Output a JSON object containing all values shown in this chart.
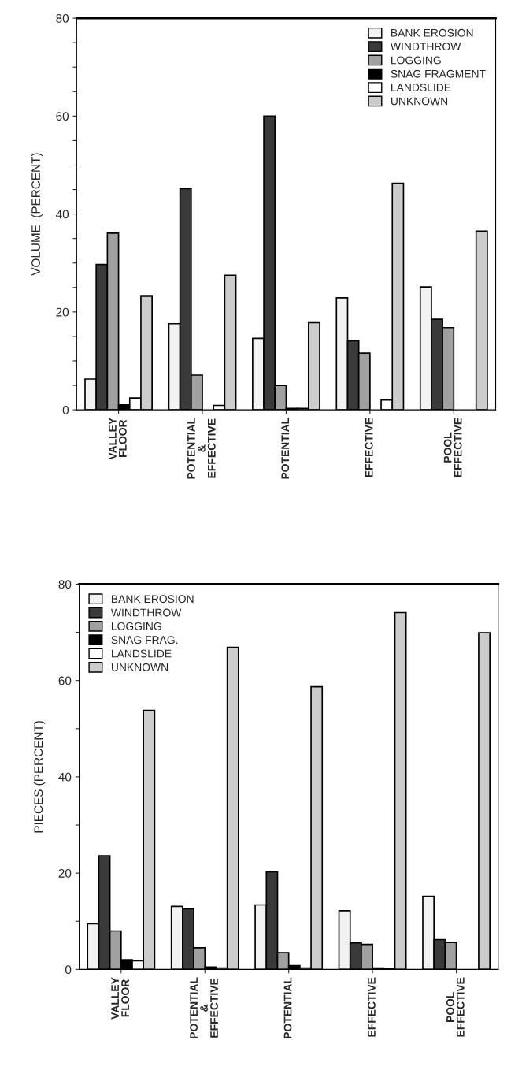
{
  "chart_data": [
    {
      "type": "bar",
      "ylabel": "VOLUME  (PERCENT)",
      "categories": [
        "VALLEY\nFLOOR",
        "POTENTIAL\n&\nEFFECTIVE",
        "POTENTIAL",
        "EFFECTIVE",
        "POOL\nEFFECTIVE"
      ],
      "series": [
        {
          "name": "BANK EROSION",
          "color": "#f2f2f2",
          "values": [
            6.3,
            17.6,
            14.6,
            22.9,
            25.1
          ]
        },
        {
          "name": "WINDTHROW",
          "color": "#3a3a3a",
          "values": [
            29.7,
            45.2,
            60,
            14.1,
            18.5
          ]
        },
        {
          "name": "LOGGING",
          "color": "#a0a0a0",
          "values": [
            36.1,
            7.1,
            5.0,
            11.6,
            16.8
          ]
        },
        {
          "name": "SNAG FRAGMENT",
          "color": "#000000",
          "values": [
            1.0,
            null,
            0.3,
            null,
            null
          ]
        },
        {
          "name": "LANDSLIDE",
          "color": "#ffffff",
          "values": [
            2.4,
            0.9,
            0.3,
            2.0,
            null
          ]
        },
        {
          "name": "UNKNOWN",
          "color": "#cccccc",
          "values": [
            23.2,
            27.5,
            17.8,
            46.3,
            36.5
          ]
        }
      ],
      "ylim": [
        0,
        80
      ],
      "yticks": [
        0,
        {
          "value": 5,
          "label": null
        },
        {
          "value": 10,
          "label": null
        },
        {
          "value": 15,
          "label": null
        },
        20,
        {
          "value": 25,
          "label": null
        },
        {
          "value": 30,
          "label": null
        },
        {
          "value": 35,
          "label": null
        },
        40,
        {
          "value": 45,
          "label": null
        },
        {
          "value": 50,
          "label": null
        },
        {
          "value": 55,
          "label": null
        },
        60,
        {
          "value": 65,
          "label": null
        },
        {
          "value": 70,
          "label": null
        },
        {
          "value": 75,
          "label": null
        },
        80
      ],
      "legend": "top right",
      "grid": false
    },
    {
      "type": "bar",
      "ylabel": "PIECES (PERCENT)",
      "categories": [
        "VALLEY\nFLOOR",
        "POTENTIAL\n&\nEFFECTIVE",
        "POTENTIAL",
        "EFFECTIVE",
        "POOL\nEFFECTIVE"
      ],
      "series": [
        {
          "name": "BANK EROSION",
          "color": "#f2f2f2",
          "values": [
            9.5,
            13.1,
            13.4,
            12.2,
            15.2
          ]
        },
        {
          "name": "WINDTHROW",
          "color": "#3a3a3a",
          "values": [
            23.6,
            12.6,
            20.3,
            5.5,
            6.2
          ]
        },
        {
          "name": "LOGGING",
          "color": "#a0a0a0",
          "values": [
            8.0,
            4.5,
            3.5,
            5.2,
            5.6
          ]
        },
        {
          "name": "SNAG FRAG.",
          "color": "#000000",
          "values": [
            2.0,
            0.5,
            0.8,
            0.3,
            null
          ]
        },
        {
          "name": "LANDSLIDE",
          "color": "#ffffff",
          "values": [
            1.8,
            0.3,
            0.3,
            0.1,
            null
          ]
        },
        {
          "name": "UNKNOWN",
          "color": "#cccccc",
          "values": [
            53.8,
            66.9,
            58.7,
            74.1,
            69.9
          ]
        }
      ],
      "ylim": [
        0,
        80
      ],
      "yticks": [
        0,
        {
          "value": 10,
          "label": null
        },
        20,
        {
          "value": 30,
          "label": null
        },
        40,
        {
          "value": 50,
          "label": null
        },
        60,
        {
          "value": 70,
          "label": null
        },
        80
      ],
      "legend": "top left",
      "grid": false
    }
  ]
}
